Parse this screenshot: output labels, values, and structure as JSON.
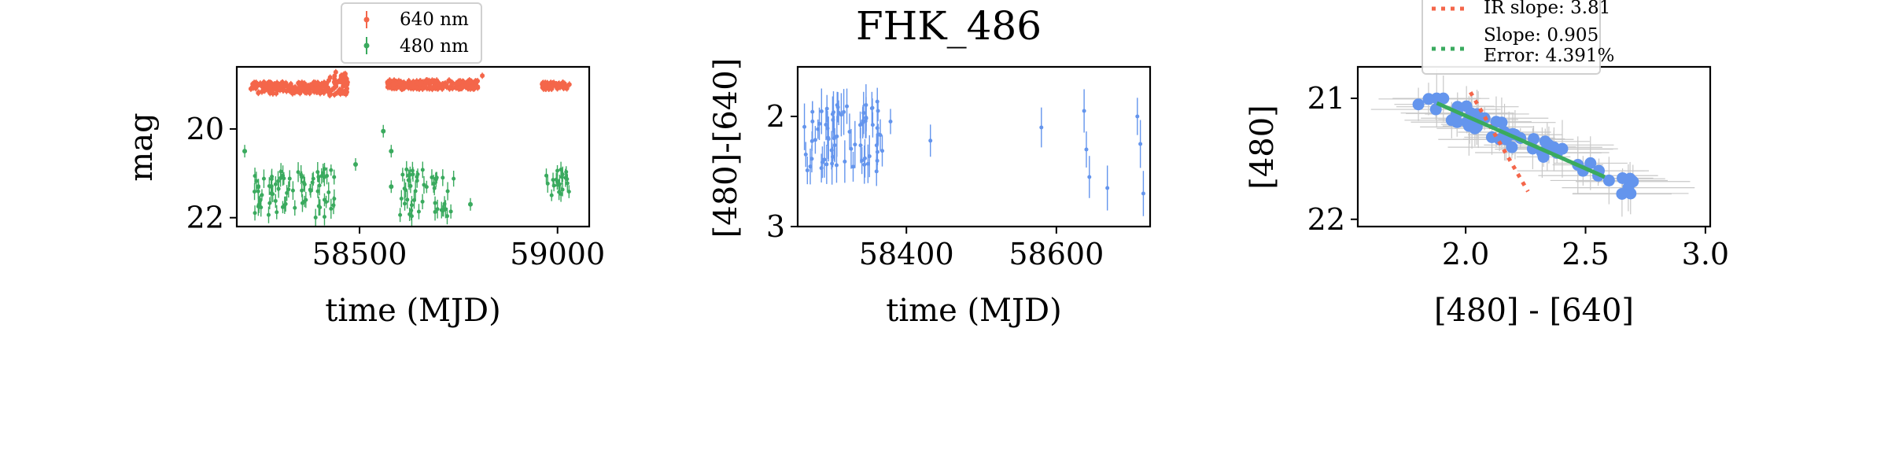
{
  "chart_data": [
    {
      "type": "scatter",
      "title": "",
      "xlabel": "time (MJD)",
      "ylabel": "mag",
      "xlim": [
        58190,
        59080
      ],
      "ylim": [
        22.2,
        18.6
      ],
      "y_inverted": true,
      "xticks": [
        58500,
        59000
      ],
      "yticks": [
        20,
        22
      ],
      "xtick_labels": [
        "58500",
        "59000"
      ],
      "ytick_labels": [
        "20",
        "22"
      ],
      "legend_position": "top-center",
      "series": [
        {
          "name": "640 nm",
          "color": "#f4664a",
          "segments": [
            [
              58225,
              58420,
              18.95,
              19.2
            ],
            [
              58420,
              58470,
              18.75,
              19.25
            ],
            [
              58570,
              58800,
              18.9,
              19.1
            ],
            [
              58960,
              59030,
              18.95,
              19.1
            ]
          ],
          "outliers": [
            [
              58810,
              18.8
            ],
            [
              58440,
              18.72
            ]
          ]
        },
        {
          "name": "480 nm",
          "color": "#3aaa5e",
          "segments": [
            [
              58230,
              58440,
              20.9,
              22.0
            ],
            [
              58600,
              58740,
              20.9,
              22.0
            ],
            [
              58970,
              59030,
              20.9,
              21.5
            ]
          ],
          "outliers": [
            [
              58210,
              20.5
            ],
            [
              58490,
              20.8
            ],
            [
              58560,
              20.05
            ],
            [
              58580,
              20.5
            ],
            [
              58580,
              21.3
            ],
            [
              58780,
              21.7
            ]
          ]
        }
      ]
    },
    {
      "type": "scatter",
      "title": "FHK_486",
      "xlabel": "time (MJD)",
      "ylabel": "[480]-[640]",
      "xlim": [
        58255,
        58725
      ],
      "ylim": [
        3.0,
        1.55
      ],
      "y_inverted": true,
      "xticks": [
        58400,
        58600
      ],
      "yticks": [
        2,
        3
      ],
      "xtick_labels": [
        "58400",
        "58600"
      ],
      "ytick_labels": [
        "2",
        "3"
      ],
      "series": [
        {
          "name": "",
          "color": "#6495ed",
          "segments": [
            [
              58262,
              58382,
              1.85,
              2.5
            ]
          ],
          "points": [
            [
              58432,
              2.22
            ],
            [
              58580,
              2.1
            ],
            [
              58637,
              1.95
            ],
            [
              58640,
              2.3
            ],
            [
              58644,
              2.55
            ],
            [
              58668,
              2.65
            ],
            [
              58708,
              2.0
            ],
            [
              58712,
              2.25
            ],
            [
              58716,
              2.7
            ]
          ]
        }
      ]
    },
    {
      "type": "scatter",
      "title": "",
      "xlabel": "[480] - [640]",
      "ylabel": "[480]",
      "xlim": [
        1.55,
        3.02
      ],
      "ylim": [
        22.06,
        20.74
      ],
      "y_inverted": true,
      "xticks": [
        2.0,
        2.5,
        3.0
      ],
      "yticks": [
        21,
        22
      ],
      "xtick_labels": [
        "2.0",
        "2.5",
        "3.0"
      ],
      "ytick_labels": [
        "21",
        "22"
      ],
      "legend_position": "top-center",
      "series": [
        {
          "name": "",
          "color": "#6495ed",
          "segments": [
            [
              1.8,
              2.72,
              20.98,
              21.77
            ]
          ]
        }
      ],
      "fit_lines": [
        {
          "name": "IR slope: 3.81",
          "color": "#f4664a",
          "x": [
            2.02,
            2.26
          ],
          "y": [
            20.95,
            21.77
          ],
          "style": "dotted"
        },
        {
          "name": "Slope: 0.905",
          "name_line2": "Error: 4.391%",
          "color": "#3aaa5e",
          "x": [
            1.88,
            2.58
          ],
          "y": [
            21.04,
            21.65
          ],
          "style": "solid"
        }
      ]
    }
  ]
}
